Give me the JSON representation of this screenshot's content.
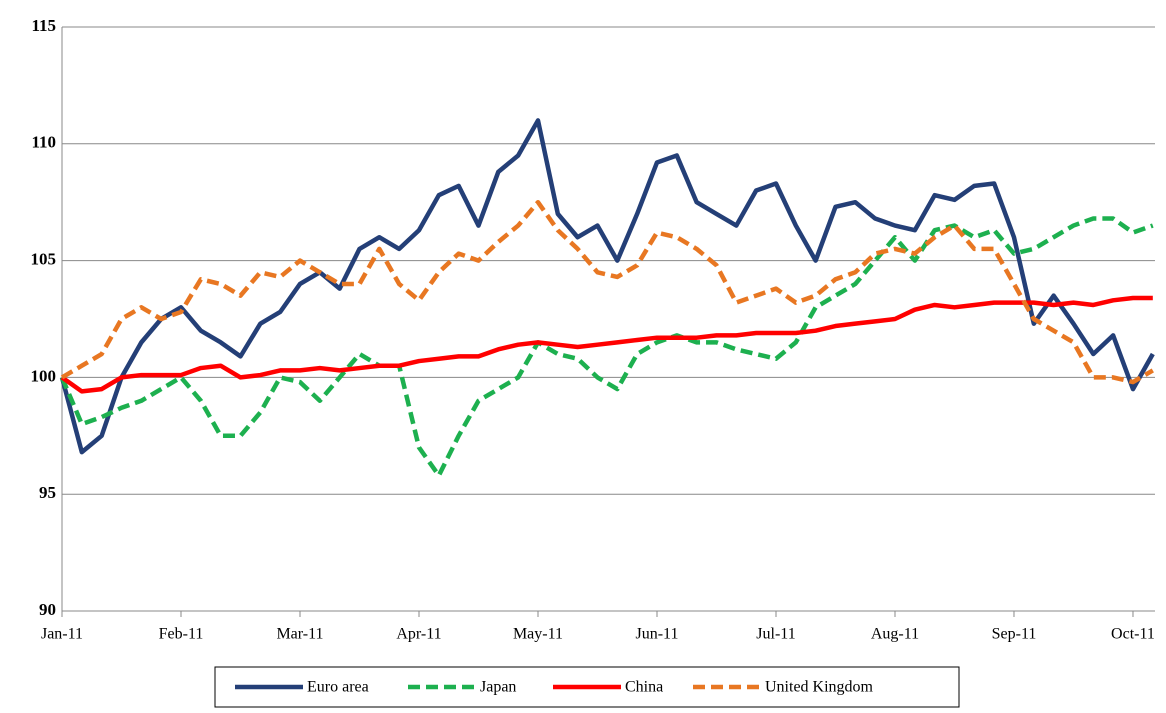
{
  "chart_data": {
    "type": "line",
    "categories": [
      "Jan-11",
      null,
      null,
      null,
      null,
      null,
      "Feb-11",
      null,
      null,
      null,
      null,
      null,
      "Mar-11",
      null,
      null,
      null,
      null,
      null,
      "Apr-11",
      null,
      null,
      null,
      null,
      null,
      "May-11",
      null,
      null,
      null,
      null,
      null,
      "Jun-11",
      null,
      null,
      null,
      null,
      null,
      "Jul-11",
      null,
      null,
      null,
      null,
      null,
      "Aug-11",
      null,
      null,
      null,
      null,
      null,
      "Sep-11",
      null,
      null,
      null,
      null,
      null,
      "Oct-11",
      null
    ],
    "ylim": [
      90,
      115
    ],
    "yticks": [
      90,
      95,
      100,
      105,
      110,
      115
    ],
    "grid": true,
    "legend": "bottom",
    "series": [
      {
        "name": "Euro area",
        "color": "#243f77",
        "dashed": false,
        "values": [
          100,
          96.8,
          97.5,
          100,
          101.5,
          102.5,
          103,
          102,
          101.5,
          100.9,
          102.3,
          102.8,
          104,
          104.5,
          103.8,
          105.5,
          106,
          105.5,
          106.3,
          107.8,
          108.2,
          106.5,
          108.8,
          109.5,
          111,
          107,
          106,
          106.5,
          105,
          107,
          109.2,
          109.5,
          107.5,
          107,
          106.5,
          108,
          108.3,
          106.5,
          105,
          107.3,
          107.5,
          106.8,
          106.5,
          106.3,
          107.8,
          107.6,
          108.2,
          108.3,
          106,
          102.3,
          103.5,
          102.3,
          101,
          101.8,
          99.5,
          101
        ]
      },
      {
        "name": "Japan",
        "color": "#1db04f",
        "dashed": true,
        "values": [
          100,
          98,
          98.3,
          98.7,
          99,
          99.5,
          100,
          99,
          97.5,
          97.5,
          98.5,
          100,
          99.8,
          99,
          100,
          101,
          100.5,
          100.5,
          97,
          95.8,
          97.5,
          99,
          99.5,
          100,
          101.5,
          101,
          100.8,
          100,
          99.5,
          101,
          101.5,
          101.8,
          101.5,
          101.5,
          101.2,
          101,
          100.8,
          101.5,
          103,
          103.5,
          104,
          105,
          106,
          105,
          106.3,
          106.5,
          106,
          106.3,
          105.3,
          105.5,
          106,
          106.5,
          106.8,
          106.8,
          106.2,
          106.5
        ]
      },
      {
        "name": "China",
        "color": "#ff0000",
        "dashed": false,
        "values": [
          100,
          99.4,
          99.5,
          100,
          100.1,
          100.1,
          100.1,
          100.4,
          100.5,
          100,
          100.1,
          100.3,
          100.3,
          100.4,
          100.3,
          100.4,
          100.5,
          100.5,
          100.7,
          100.8,
          100.9,
          100.9,
          101.2,
          101.4,
          101.5,
          101.4,
          101.3,
          101.4,
          101.5,
          101.6,
          101.7,
          101.7,
          101.7,
          101.8,
          101.8,
          101.9,
          101.9,
          101.9,
          102,
          102.2,
          102.3,
          102.4,
          102.5,
          102.9,
          103.1,
          103,
          103.1,
          103.2,
          103.2,
          103.2,
          103.1,
          103.2,
          103.1,
          103.3,
          103.4,
          103.4
        ]
      },
      {
        "name": "United Kingdom",
        "color": "#e87722",
        "dashed": true,
        "values": [
          100,
          100.5,
          101,
          102.5,
          103,
          102.5,
          102.8,
          104.2,
          104,
          103.5,
          104.5,
          104.3,
          105,
          104.5,
          104,
          104,
          105.5,
          104,
          103.3,
          104.5,
          105.3,
          105,
          105.8,
          106.5,
          107.5,
          106.3,
          105.5,
          104.5,
          104.3,
          104.8,
          106.2,
          106,
          105.5,
          104.8,
          103.2,
          103.5,
          103.8,
          103.2,
          103.5,
          104.2,
          104.5,
          105.3,
          105.5,
          105.3,
          106,
          106.5,
          105.5,
          105.5,
          104,
          102.5,
          102,
          101.5,
          100,
          100,
          99.8,
          100.3
        ]
      }
    ]
  }
}
